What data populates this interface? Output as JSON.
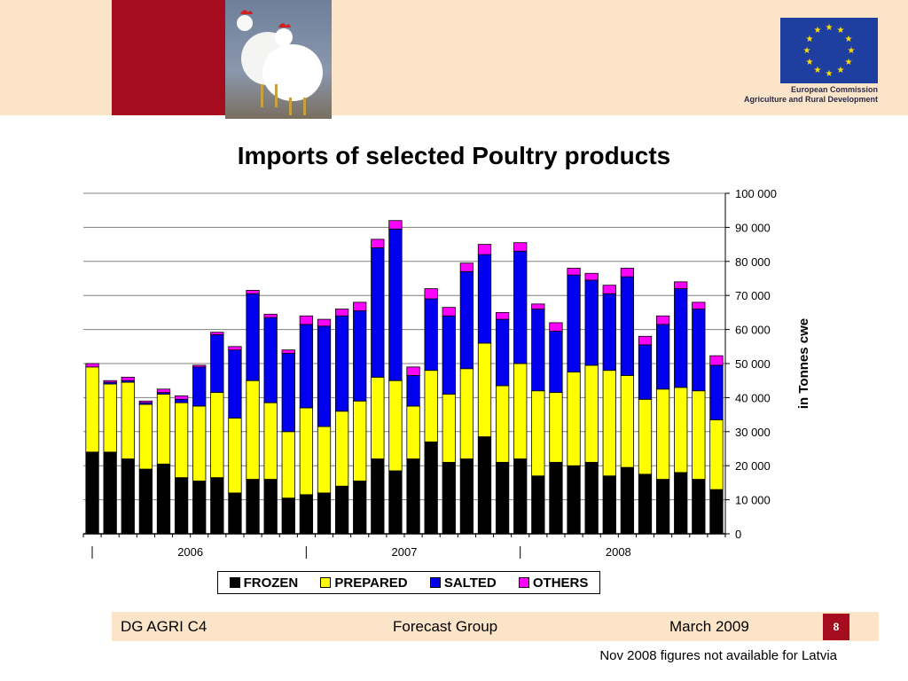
{
  "header": {
    "org_line1": "European Commission",
    "org_line2": "Agriculture and Rural Development",
    "brand_red": "#a50d1f",
    "band_color": "#fce4c8"
  },
  "chart_data": {
    "type": "bar",
    "stacked": true,
    "title": "Imports of selected Poultry products",
    "ylabel": "in Tonnes cwe",
    "ylim": [
      0,
      100000
    ],
    "yticks": [
      "0",
      "10 000",
      "20 000",
      "30 000",
      "40 000",
      "50 000",
      "60 000",
      "70 000",
      "80 000",
      "90 000",
      "100 000"
    ],
    "year_labels": [
      "2006",
      "2007",
      "2008"
    ],
    "months_per_year": 12,
    "categories": [
      "2006-01",
      "2006-02",
      "2006-03",
      "2006-04",
      "2006-05",
      "2006-06",
      "2006-07",
      "2006-08",
      "2006-09",
      "2006-10",
      "2006-11",
      "2006-12",
      "2007-01",
      "2007-02",
      "2007-03",
      "2007-04",
      "2007-05",
      "2007-06",
      "2007-07",
      "2007-08",
      "2007-09",
      "2007-10",
      "2007-11",
      "2007-12",
      "2008-01",
      "2008-02",
      "2008-03",
      "2008-04",
      "2008-05",
      "2008-06",
      "2008-07",
      "2008-08",
      "2008-09",
      "2008-10",
      "2008-11",
      "2008-12"
    ],
    "series": [
      {
        "name": "FROZEN",
        "color": "#000000",
        "values": [
          24000,
          24000,
          22000,
          19000,
          20500,
          16500,
          15500,
          16500,
          12000,
          16000,
          16000,
          10500,
          11500,
          12000,
          14000,
          15500,
          22000,
          18500,
          22000,
          27000,
          21000,
          22000,
          28500,
          21000,
          22000,
          17000,
          21000,
          20000,
          21000,
          17000,
          19500,
          17500,
          16000,
          18000,
          16000,
          13000
        ]
      },
      {
        "name": "PREPARED",
        "color": "#ffff00",
        "values": [
          25000,
          20000,
          22500,
          19000,
          20500,
          22000,
          22000,
          25000,
          22000,
          29000,
          22500,
          19500,
          25500,
          19500,
          22000,
          23500,
          24000,
          26500,
          15500,
          21000,
          20000,
          26500,
          27500,
          22500,
          28000,
          25000,
          20500,
          27500,
          28500,
          31000,
          27000,
          22000,
          26500,
          25000,
          26000,
          20500
        ]
      },
      {
        "name": "SALTED",
        "color": "#0000ee",
        "values": [
          0,
          500,
          500,
          500,
          500,
          1000,
          11500,
          17000,
          20000,
          25500,
          25000,
          23000,
          24500,
          29500,
          28000,
          26500,
          38000,
          44500,
          9000,
          21000,
          23000,
          28500,
          26000,
          19500,
          33000,
          24000,
          18000,
          28500,
          25000,
          22500,
          29000,
          16000,
          19000,
          29000,
          24000,
          16000
        ]
      },
      {
        "name": "OTHERS",
        "color": "#ff00ff",
        "values": [
          1000,
          500,
          1000,
          500,
          1000,
          1000,
          500,
          700,
          1000,
          1000,
          1000,
          1000,
          2500,
          2000,
          2000,
          2500,
          2500,
          2500,
          2500,
          3000,
          2500,
          2500,
          3000,
          2000,
          2500,
          1500,
          2500,
          2000,
          2000,
          2500,
          2500,
          2500,
          2500,
          2000,
          2000,
          2800
        ]
      }
    ],
    "legend_position": "bottom-center"
  },
  "footer": {
    "left": "DG AGRI C4",
    "center": "Forecast Group",
    "right": "March 2009",
    "page_number": "8",
    "note": "Nov 2008 figures not available for Latvia"
  }
}
